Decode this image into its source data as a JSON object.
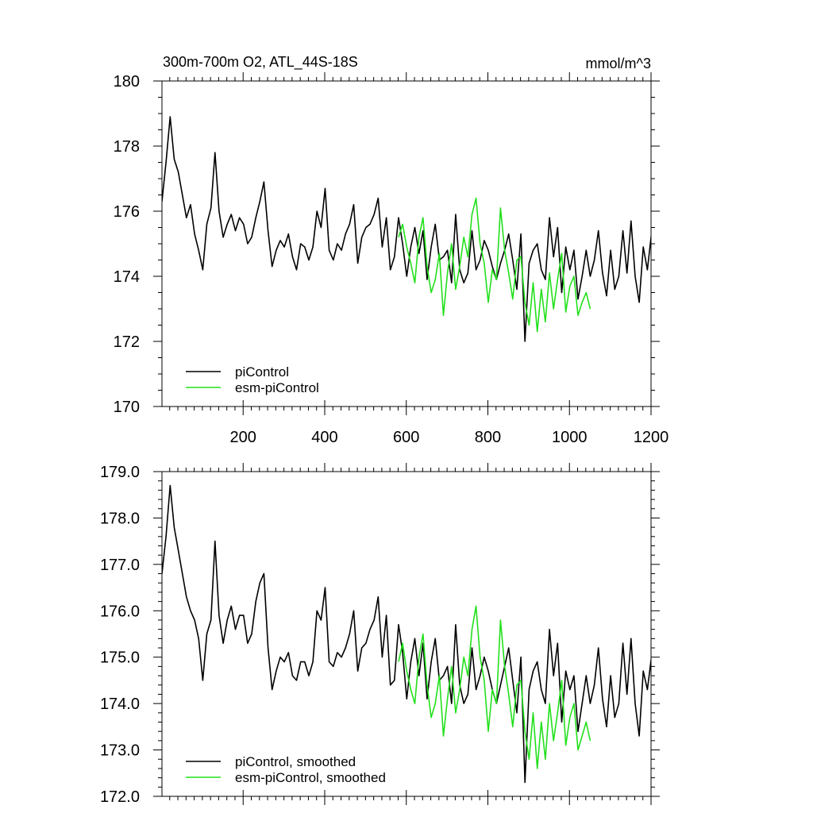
{
  "figure": {
    "title": "300m-700m O2, ATL_44S-18S",
    "units": "mmol/m^3"
  },
  "colors": {
    "piControl": "#000000",
    "esm_piControl": "#22e01c"
  },
  "chart_data": [
    {
      "type": "line",
      "title": "300m-700m O2, ATL_44S-18S",
      "units": "mmol/m^3",
      "xlim": [
        1,
        1200
      ],
      "ylim": [
        170,
        180
      ],
      "xticks": [
        200,
        400,
        600,
        800,
        1000,
        1200
      ],
      "xtick_labels": [
        "200",
        "400",
        "600",
        "800",
        "1000",
        "1200"
      ],
      "yticks": [
        170,
        172,
        174,
        176,
        178,
        180
      ],
      "ytick_labels": [
        "170",
        "172",
        "174",
        "176",
        "178",
        "180"
      ],
      "legend_position": "bottom-left",
      "series": [
        {
          "name": "piControl",
          "x_start": 1,
          "x_step": 10,
          "values": [
            176.3,
            177.5,
            178.9,
            177.6,
            177.2,
            176.5,
            175.8,
            176.2,
            175.3,
            174.8,
            174.2,
            175.6,
            176.1,
            177.8,
            176.0,
            175.2,
            175.6,
            175.9,
            175.4,
            175.8,
            175.6,
            175.0,
            175.2,
            175.8,
            176.3,
            176.9,
            175.4,
            174.3,
            174.8,
            175.1,
            174.9,
            175.3,
            174.6,
            174.2,
            175.0,
            174.9,
            174.5,
            174.9,
            176.0,
            175.5,
            176.7,
            174.8,
            174.5,
            175.0,
            174.8,
            175.3,
            175.6,
            176.2,
            174.4,
            175.2,
            175.5,
            175.6,
            175.9,
            176.4,
            174.9,
            175.8,
            174.2,
            174.6,
            175.8,
            175.0,
            174.0,
            174.9,
            175.5,
            174.7,
            175.4,
            173.9,
            174.9,
            175.6,
            174.5,
            174.6,
            174.8,
            173.8,
            175.9,
            174.2,
            173.8,
            174.1,
            175.4,
            174.2,
            174.5,
            175.1,
            174.8,
            174.3,
            173.9,
            174.4,
            174.8,
            175.3,
            174.5,
            173.6,
            175.3,
            172.0,
            174.4,
            174.8,
            175.0,
            174.2,
            173.9,
            175.8,
            174.6,
            175.5,
            173.5,
            174.9,
            174.2,
            174.8,
            173.3,
            174.0,
            174.8,
            174.0,
            174.5,
            175.4,
            174.1,
            173.4,
            174.8,
            173.6,
            174.0,
            175.4,
            174.1,
            175.7,
            174.0,
            173.2,
            174.9,
            174.2,
            175.3
          ]
        },
        {
          "name": "esm-piControl",
          "x_start": 581,
          "x_step": 10,
          "values": [
            175.2,
            175.6,
            174.9,
            174.4,
            173.8,
            175.2,
            175.8,
            174.3,
            173.5,
            173.9,
            174.7,
            172.8,
            174.1,
            175.0,
            173.6,
            174.3,
            175.2,
            174.6,
            175.9,
            176.4,
            175.0,
            174.4,
            173.2,
            174.2,
            173.9,
            176.1,
            174.8,
            174.1,
            173.3,
            174.5,
            174.6,
            173.2,
            172.5,
            173.8,
            172.3,
            173.6,
            172.6,
            174.1,
            173.0,
            173.9,
            174.7,
            172.9,
            173.7,
            174.0,
            172.8,
            173.2,
            173.5,
            173.0
          ]
        }
      ]
    },
    {
      "type": "line",
      "xlim": [
        1,
        1200
      ],
      "ylim": [
        172,
        179
      ],
      "xticks": [
        200,
        400,
        600,
        800,
        1000,
        1200
      ],
      "yticks": [
        172,
        173,
        174,
        175,
        176,
        177,
        178,
        179
      ],
      "ytick_labels": [
        "172.0",
        "173.0",
        "174.0",
        "175.0",
        "176.0",
        "177.0",
        "178.0",
        "179.0"
      ],
      "legend_position": "bottom-left",
      "series": [
        {
          "name": "piControl, smoothed",
          "x_start": 1,
          "x_step": 10,
          "values": [
            176.8,
            177.6,
            178.7,
            177.8,
            177.3,
            176.8,
            176.3,
            176.0,
            175.8,
            175.4,
            174.5,
            175.5,
            175.8,
            177.5,
            175.9,
            175.3,
            175.8,
            176.1,
            175.6,
            175.9,
            175.9,
            175.3,
            175.5,
            176.2,
            176.6,
            176.8,
            175.2,
            174.3,
            174.7,
            175.0,
            174.9,
            175.1,
            174.6,
            174.5,
            174.9,
            174.9,
            174.6,
            174.9,
            176.0,
            175.8,
            176.5,
            174.9,
            174.8,
            175.1,
            175.0,
            175.2,
            175.5,
            176.0,
            174.7,
            175.2,
            175.3,
            175.6,
            175.8,
            176.3,
            175.0,
            175.9,
            174.4,
            174.5,
            175.7,
            175.1,
            174.1,
            174.9,
            175.4,
            174.6,
            175.3,
            174.1,
            174.9,
            175.4,
            174.5,
            174.6,
            174.8,
            174.0,
            175.7,
            174.4,
            174.0,
            174.2,
            175.2,
            174.3,
            174.6,
            175.0,
            174.7,
            174.3,
            174.0,
            174.4,
            174.8,
            175.2,
            174.5,
            173.8,
            175.0,
            172.3,
            174.3,
            174.7,
            174.9,
            174.3,
            174.0,
            175.6,
            174.6,
            175.3,
            173.6,
            174.7,
            174.3,
            174.6,
            173.4,
            174.0,
            174.6,
            174.0,
            174.4,
            175.2,
            174.1,
            173.5,
            174.6,
            173.7,
            174.0,
            175.3,
            174.2,
            175.4,
            174.0,
            173.3,
            174.7,
            174.3,
            175.0
          ]
        },
        {
          "name": "esm-piControl, smoothed",
          "x_start": 581,
          "x_step": 10,
          "values": [
            174.9,
            175.3,
            174.7,
            174.3,
            174.0,
            175.0,
            175.5,
            174.4,
            173.7,
            174.0,
            174.6,
            173.3,
            174.1,
            174.8,
            173.8,
            174.3,
            175.0,
            174.6,
            175.6,
            176.1,
            175.0,
            174.5,
            173.4,
            174.3,
            174.0,
            175.8,
            174.8,
            174.2,
            173.5,
            174.4,
            174.5,
            173.4,
            172.8,
            173.8,
            172.6,
            173.6,
            172.8,
            174.0,
            173.2,
            173.8,
            174.5,
            173.1,
            173.7,
            174.0,
            173.0,
            173.3,
            173.6,
            173.2
          ]
        }
      ]
    }
  ]
}
